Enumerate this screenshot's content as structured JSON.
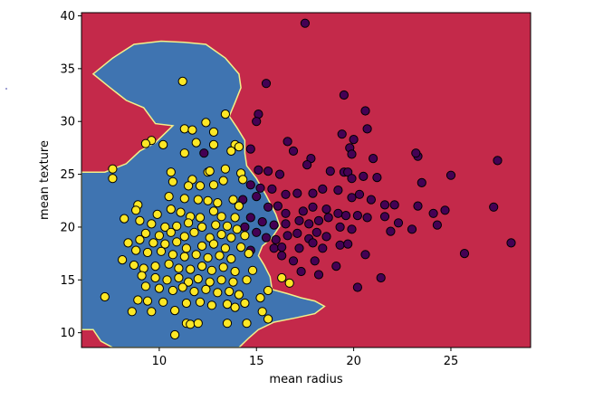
{
  "chart_data": {
    "type": "scatter",
    "title": "",
    "xlabel": "mean radius",
    "ylabel": "mean texture",
    "xlim": [
      6,
      29.1
    ],
    "ylim": [
      8.6,
      40.3
    ],
    "xticks": [
      10,
      15,
      20,
      25
    ],
    "yticks": [
      10,
      15,
      20,
      25,
      30,
      35,
      40
    ],
    "grid": false,
    "legend": "none",
    "background": {
      "description": "decision regions",
      "region_colors": [
        "#c4294a",
        "#3f74b1"
      ],
      "boundary_color": "#f2f08a",
      "blue_region_polygon": [
        [
          6.0,
          25.2
        ],
        [
          7.2,
          25.2
        ],
        [
          8.3,
          26.0
        ],
        [
          9.0,
          27.2
        ],
        [
          9.8,
          28.0
        ],
        [
          10.7,
          29.6
        ],
        [
          9.8,
          29.8
        ],
        [
          9.2,
          31.3
        ],
        [
          8.3,
          32.0
        ],
        [
          7.4,
          33.3
        ],
        [
          6.6,
          34.5
        ],
        [
          7.6,
          36.0
        ],
        [
          8.7,
          37.3
        ],
        [
          10.1,
          37.6
        ],
        [
          11.3,
          37.5
        ],
        [
          12.4,
          37.3
        ],
        [
          13.4,
          36.0
        ],
        [
          14.1,
          34.5
        ],
        [
          14.2,
          33.2
        ],
        [
          13.9,
          31.8
        ],
        [
          13.6,
          30.5
        ],
        [
          14.0,
          29.4
        ],
        [
          14.4,
          28.2
        ],
        [
          14.4,
          27.0
        ],
        [
          14.5,
          25.8
        ],
        [
          15.0,
          24.6
        ],
        [
          15.5,
          23.0
        ],
        [
          16.0,
          21.2
        ],
        [
          16.2,
          20.1
        ],
        [
          15.8,
          19.0
        ],
        [
          15.3,
          18.2
        ],
        [
          15.1,
          17.3
        ],
        [
          15.4,
          16.4
        ],
        [
          15.7,
          15.3
        ],
        [
          15.8,
          14.1
        ],
        [
          16.6,
          13.7
        ],
        [
          17.3,
          13.3
        ],
        [
          18.0,
          13.0
        ],
        [
          18.5,
          12.5
        ],
        [
          18.0,
          11.8
        ],
        [
          17.0,
          11.4
        ],
        [
          15.9,
          11.0
        ],
        [
          15.1,
          10.3
        ],
        [
          14.6,
          9.5
        ],
        [
          14.1,
          8.6
        ],
        [
          7.6,
          8.6
        ],
        [
          7.0,
          9.2
        ],
        [
          6.6,
          10.3
        ],
        [
          6.0,
          10.3
        ]
      ]
    },
    "series": [
      {
        "color": "#440154",
        "points": [
          [
            17.5,
            39.3
          ],
          [
            15.5,
            33.6
          ],
          [
            15.1,
            30.7
          ],
          [
            15.0,
            30.0
          ],
          [
            16.6,
            28.1
          ],
          [
            19.5,
            32.5
          ],
          [
            20.6,
            31.0
          ],
          [
            20.7,
            29.3
          ],
          [
            19.4,
            28.8
          ],
          [
            20.0,
            28.3
          ],
          [
            19.8,
            27.5
          ],
          [
            19.9,
            26.9
          ],
          [
            21.0,
            26.5
          ],
          [
            16.9,
            27.2
          ],
          [
            17.8,
            26.5
          ],
          [
            14.7,
            27.4
          ],
          [
            15.1,
            25.4
          ],
          [
            15.6,
            25.3
          ],
          [
            16.2,
            25.0
          ],
          [
            17.6,
            25.9
          ],
          [
            18.8,
            25.3
          ],
          [
            19.5,
            25.2
          ],
          [
            19.7,
            25.2
          ],
          [
            19.9,
            24.6
          ],
          [
            20.5,
            24.8
          ],
          [
            21.2,
            24.7
          ],
          [
            23.3,
            26.7
          ],
          [
            23.2,
            27.0
          ],
          [
            23.5,
            24.2
          ],
          [
            25.0,
            24.9
          ],
          [
            27.4,
            26.3
          ],
          [
            14.7,
            24.0
          ],
          [
            15.2,
            23.7
          ],
          [
            15.8,
            23.6
          ],
          [
            16.5,
            23.1
          ],
          [
            17.1,
            23.2
          ],
          [
            17.9,
            23.2
          ],
          [
            18.4,
            23.6
          ],
          [
            19.2,
            23.5
          ],
          [
            19.9,
            22.8
          ],
          [
            20.3,
            23.1
          ],
          [
            20.9,
            22.6
          ],
          [
            21.6,
            22.1
          ],
          [
            22.1,
            22.1
          ],
          [
            23.3,
            22.0
          ],
          [
            24.1,
            21.3
          ],
          [
            24.7,
            21.6
          ],
          [
            27.2,
            21.9
          ],
          [
            14.3,
            22.6
          ],
          [
            15.0,
            22.9
          ],
          [
            15.6,
            21.9
          ],
          [
            16.1,
            22.0
          ],
          [
            16.5,
            21.3
          ],
          [
            17.4,
            21.5
          ],
          [
            17.9,
            21.9
          ],
          [
            18.6,
            21.7
          ],
          [
            19.2,
            21.3
          ],
          [
            19.6,
            21.1
          ],
          [
            20.2,
            21.1
          ],
          [
            20.7,
            20.9
          ],
          [
            21.6,
            21.0
          ],
          [
            22.3,
            20.4
          ],
          [
            23.0,
            19.8
          ],
          [
            24.3,
            20.2
          ],
          [
            14.7,
            20.9
          ],
          [
            15.3,
            20.5
          ],
          [
            15.9,
            20.2
          ],
          [
            16.5,
            20.3
          ],
          [
            17.2,
            20.6
          ],
          [
            17.7,
            20.3
          ],
          [
            18.2,
            20.6
          ],
          [
            18.7,
            20.9
          ],
          [
            19.3,
            20.0
          ],
          [
            19.9,
            19.8
          ],
          [
            21.9,
            19.6
          ],
          [
            14.4,
            20.0
          ],
          [
            15.0,
            19.5
          ],
          [
            15.5,
            19.0
          ],
          [
            16.0,
            18.8
          ],
          [
            16.6,
            19.2
          ],
          [
            17.1,
            19.4
          ],
          [
            17.7,
            18.9
          ],
          [
            18.1,
            19.5
          ],
          [
            18.6,
            19.1
          ],
          [
            19.3,
            18.3
          ],
          [
            19.7,
            18.4
          ],
          [
            20.6,
            17.4
          ],
          [
            15.9,
            18.0
          ],
          [
            16.3,
            18.1
          ],
          [
            17.2,
            18.0
          ],
          [
            17.9,
            18.5
          ],
          [
            18.4,
            18.0
          ],
          [
            14.7,
            17.8
          ],
          [
            16.3,
            17.3
          ],
          [
            16.9,
            16.8
          ],
          [
            18.0,
            16.8
          ],
          [
            19.1,
            16.3
          ],
          [
            17.3,
            15.8
          ],
          [
            18.2,
            15.5
          ],
          [
            21.4,
            15.2
          ],
          [
            20.2,
            14.3
          ],
          [
            28.1,
            18.5
          ],
          [
            25.7,
            17.5
          ],
          [
            12.3,
            27.0
          ]
        ]
      },
      {
        "color": "#fde725",
        "points": [
          [
            11.2,
            33.8
          ],
          [
            13.4,
            30.7
          ],
          [
            12.4,
            29.9
          ],
          [
            11.3,
            29.3
          ],
          [
            11.7,
            29.2
          ],
          [
            12.8,
            29.0
          ],
          [
            9.6,
            28.2
          ],
          [
            9.3,
            27.9
          ],
          [
            10.2,
            27.8
          ],
          [
            11.9,
            28.0
          ],
          [
            12.8,
            27.8
          ],
          [
            13.9,
            27.8
          ],
          [
            13.7,
            27.2
          ],
          [
            14.1,
            27.6
          ],
          [
            11.3,
            27.0
          ],
          [
            7.6,
            25.5
          ],
          [
            7.6,
            24.6
          ],
          [
            10.6,
            25.2
          ],
          [
            12.5,
            25.2
          ],
          [
            12.6,
            25.3
          ],
          [
            13.4,
            25.5
          ],
          [
            14.2,
            25.1
          ],
          [
            10.7,
            24.3
          ],
          [
            11.7,
            24.5
          ],
          [
            11.5,
            23.9
          ],
          [
            12.1,
            23.9
          ],
          [
            12.8,
            24.0
          ],
          [
            13.3,
            24.4
          ],
          [
            14.3,
            24.5
          ],
          [
            10.5,
            22.9
          ],
          [
            11.3,
            22.7
          ],
          [
            12.0,
            22.6
          ],
          [
            12.5,
            22.5
          ],
          [
            13.0,
            22.3
          ],
          [
            13.8,
            22.6
          ],
          [
            14.1,
            22.0
          ],
          [
            8.9,
            22.1
          ],
          [
            8.8,
            21.6
          ],
          [
            9.9,
            21.2
          ],
          [
            10.6,
            21.7
          ],
          [
            11.1,
            21.4
          ],
          [
            11.6,
            21.0
          ],
          [
            12.1,
            20.9
          ],
          [
            12.8,
            21.5
          ],
          [
            13.2,
            21.0
          ],
          [
            13.9,
            20.9
          ],
          [
            8.2,
            20.8
          ],
          [
            9.0,
            20.6
          ],
          [
            9.6,
            20.3
          ],
          [
            10.3,
            20.0
          ],
          [
            10.9,
            20.1
          ],
          [
            11.5,
            20.4
          ],
          [
            12.2,
            20.0
          ],
          [
            12.9,
            20.2
          ],
          [
            13.5,
            20.1
          ],
          [
            14.0,
            19.8
          ],
          [
            9.3,
            19.4
          ],
          [
            10.0,
            19.2
          ],
          [
            10.6,
            19.5
          ],
          [
            11.3,
            19.1
          ],
          [
            11.8,
            19.5
          ],
          [
            12.6,
            19.0
          ],
          [
            13.2,
            19.3
          ],
          [
            13.7,
            19.0
          ],
          [
            14.4,
            19.2
          ],
          [
            9.0,
            18.8
          ],
          [
            9.7,
            18.5
          ],
          [
            10.3,
            18.4
          ],
          [
            10.9,
            18.6
          ],
          [
            11.4,
            18.0
          ],
          [
            12.2,
            18.2
          ],
          [
            12.8,
            18.4
          ],
          [
            13.4,
            18.0
          ],
          [
            14.2,
            18.1
          ],
          [
            8.4,
            18.5
          ],
          [
            8.8,
            17.8
          ],
          [
            9.4,
            17.6
          ],
          [
            10.1,
            17.7
          ],
          [
            10.7,
            17.4
          ],
          [
            11.3,
            17.2
          ],
          [
            11.9,
            17.4
          ],
          [
            12.5,
            17.1
          ],
          [
            13.1,
            17.3
          ],
          [
            13.7,
            17.0
          ],
          [
            14.6,
            17.5
          ],
          [
            8.1,
            16.9
          ],
          [
            8.7,
            16.4
          ],
          [
            9.2,
            16.1
          ],
          [
            9.8,
            16.3
          ],
          [
            10.5,
            16.5
          ],
          [
            11.0,
            16.1
          ],
          [
            11.6,
            16.0
          ],
          [
            12.2,
            16.3
          ],
          [
            12.7,
            15.9
          ],
          [
            13.3,
            16.2
          ],
          [
            13.9,
            15.8
          ],
          [
            14.8,
            15.9
          ],
          [
            9.1,
            15.4
          ],
          [
            9.8,
            15.2
          ],
          [
            10.4,
            15.0
          ],
          [
            11.0,
            15.2
          ],
          [
            11.5,
            14.8
          ],
          [
            12.0,
            15.1
          ],
          [
            12.6,
            14.8
          ],
          [
            13.2,
            15.0
          ],
          [
            13.8,
            14.8
          ],
          [
            14.5,
            15.0
          ],
          [
            9.3,
            14.4
          ],
          [
            10.0,
            14.2
          ],
          [
            10.7,
            14.0
          ],
          [
            11.2,
            14.3
          ],
          [
            11.8,
            13.9
          ],
          [
            12.4,
            14.1
          ],
          [
            13.0,
            13.8
          ],
          [
            13.6,
            13.9
          ],
          [
            14.1,
            13.6
          ],
          [
            15.2,
            13.3
          ],
          [
            8.9,
            13.1
          ],
          [
            9.4,
            13.0
          ],
          [
            10.2,
            12.9
          ],
          [
            11.4,
            12.8
          ],
          [
            12.1,
            12.9
          ],
          [
            12.7,
            12.6
          ],
          [
            13.5,
            12.7
          ],
          [
            14.4,
            12.8
          ],
          [
            15.6,
            14.0
          ],
          [
            7.2,
            13.4
          ],
          [
            8.6,
            12.0
          ],
          [
            9.6,
            12.0
          ],
          [
            10.8,
            12.1
          ],
          [
            13.9,
            12.4
          ],
          [
            15.3,
            12.0
          ],
          [
            16.7,
            14.7
          ],
          [
            11.4,
            10.9
          ],
          [
            11.6,
            10.8
          ],
          [
            12.0,
            10.9
          ],
          [
            13.5,
            10.9
          ],
          [
            14.5,
            10.9
          ],
          [
            15.6,
            11.3
          ],
          [
            10.8,
            9.8
          ],
          [
            16.3,
            15.2
          ]
        ]
      }
    ]
  }
}
